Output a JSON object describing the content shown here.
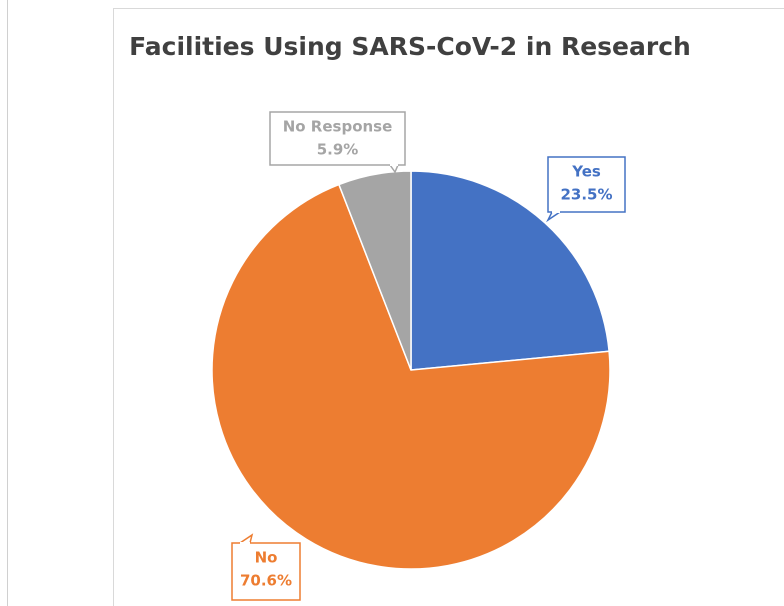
{
  "chart_data": {
    "type": "pie",
    "title": "Facilities Using SARS-CoV-2 in Research",
    "categories": [
      "Yes",
      "No",
      "No Response"
    ],
    "values": [
      23.5,
      70.6,
      5.9
    ],
    "value_labels": [
      "23.5%",
      "70.6%",
      "5.9%"
    ],
    "colors": [
      "#4472c4",
      "#ed7d31",
      "#a5a5a5"
    ]
  }
}
